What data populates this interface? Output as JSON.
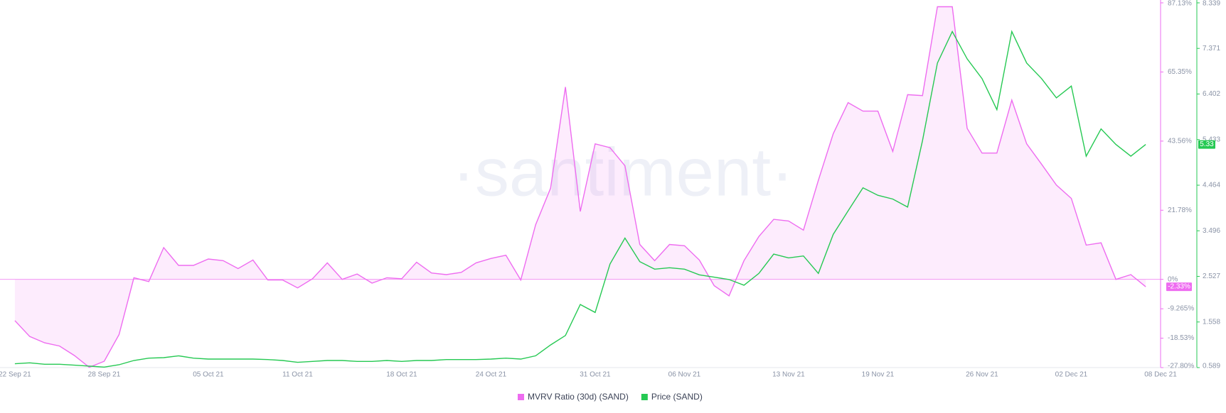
{
  "chart_data": {
    "type": "line",
    "watermark": "·santiment·",
    "x": [
      "22 Sep 21",
      "23 Sep 21",
      "24 Sep 21",
      "25 Sep 21",
      "26 Sep 21",
      "27 Sep 21",
      "28 Sep 21",
      "29 Sep 21",
      "30 Sep 21",
      "01 Oct 21",
      "02 Oct 21",
      "03 Oct 21",
      "04 Oct 21",
      "05 Oct 21",
      "06 Oct 21",
      "07 Oct 21",
      "08 Oct 21",
      "09 Oct 21",
      "10 Oct 21",
      "11 Oct 21",
      "12 Oct 21",
      "13 Oct 21",
      "14 Oct 21",
      "15 Oct 21",
      "16 Oct 21",
      "17 Oct 21",
      "18 Oct 21",
      "19 Oct 21",
      "20 Oct 21",
      "21 Oct 21",
      "22 Oct 21",
      "23 Oct 21",
      "24 Oct 21",
      "25 Oct 21",
      "26 Oct 21",
      "27 Oct 21",
      "28 Oct 21",
      "29 Oct 21",
      "30 Oct 21",
      "31 Oct 21",
      "01 Nov 21",
      "02 Nov 21",
      "03 Nov 21",
      "04 Nov 21",
      "05 Nov 21",
      "06 Nov 21",
      "07 Nov 21",
      "08 Nov 21",
      "09 Nov 21",
      "10 Nov 21",
      "11 Nov 21",
      "12 Nov 21",
      "13 Nov 21",
      "14 Nov 21",
      "15 Nov 21",
      "16 Nov 21",
      "17 Nov 21",
      "18 Nov 21",
      "19 Nov 21",
      "20 Nov 21",
      "21 Nov 21",
      "22 Nov 21",
      "23 Nov 21",
      "24 Nov 21",
      "25 Nov 21",
      "26 Nov 21",
      "27 Nov 21",
      "28 Nov 21",
      "29 Nov 21",
      "30 Nov 21",
      "01 Dec 21",
      "02 Dec 21",
      "03 Dec 21",
      "04 Dec 21",
      "05 Dec 21",
      "06 Dec 21",
      "07 Dec 21"
    ],
    "xlim": [
      "21 Sep 21",
      "08 Dec 21"
    ],
    "xticks": [
      "22 Sep 21",
      "28 Sep 21",
      "05 Oct 21",
      "11 Oct 21",
      "18 Oct 21",
      "24 Oct 21",
      "31 Oct 21",
      "06 Nov 21",
      "13 Nov 21",
      "19 Nov 21",
      "26 Nov 21",
      "02 Dec 21",
      "08 Dec 21"
    ],
    "ylim": [
      -27.8,
      87.13
    ],
    "yticks": [
      {
        "value": 87.13,
        "label": "87.13%"
      },
      {
        "value": 65.35,
        "label": "65.35%"
      },
      {
        "value": 43.56,
        "label": "43.56%"
      },
      {
        "value": 21.78,
        "label": "21.78%"
      },
      {
        "value": 0,
        "label": "0%"
      },
      {
        "value": -9.265,
        "label": "-9.265%"
      },
      {
        "value": -18.53,
        "label": "-18.53%"
      },
      {
        "value": -27.8,
        "label": "-27.80%"
      }
    ],
    "y2lim": [
      0.589,
      8.339
    ],
    "y2ticks": [
      8.339,
      7.371,
      6.402,
      5.433,
      4.464,
      3.496,
      2.527,
      1.558,
      0.589
    ],
    "series": [
      {
        "name": "MVRV Ratio (30d) (SAND)",
        "color": "#ee6cf0",
        "area": true,
        "current_label": "-2.33%",
        "values": [
          -13,
          -18,
          -20,
          -21,
          -24,
          -27.7,
          -25.8,
          -17.4,
          0.5,
          -0.7,
          10,
          4.4,
          4.4,
          6.4,
          5.9,
          3.4,
          6.1,
          -0.2,
          -0.2,
          -2.7,
          0.2,
          5.2,
          0,
          1.7,
          -1.2,
          0.5,
          0.2,
          5.4,
          2,
          1.5,
          2.2,
          5.2,
          6.6,
          7.6,
          -0.2,
          17.2,
          28.7,
          60.6,
          21.4,
          42.7,
          41.5,
          35.8,
          11,
          5.9,
          11,
          10.6,
          6.1,
          -2,
          -5.2,
          5.9,
          13.5,
          18.9,
          18.4,
          15.5,
          31.2,
          45.9,
          55.7,
          53,
          53,
          40.3,
          58.2,
          57.9,
          85.9,
          85.9,
          47.6,
          39.8,
          39.8,
          56.5,
          42.7,
          36.3,
          29.7,
          25.5,
          10.8,
          11.5,
          0,
          1.5,
          -2.33
        ]
      },
      {
        "name": "Price (SAND)",
        "color": "#26c953",
        "axis": "y2",
        "current_label": "5.33",
        "values": [
          0.67,
          0.69,
          0.66,
          0.66,
          0.64,
          0.62,
          0.6,
          0.65,
          0.74,
          0.79,
          0.8,
          0.84,
          0.79,
          0.77,
          0.77,
          0.77,
          0.77,
          0.76,
          0.74,
          0.7,
          0.72,
          0.74,
          0.74,
          0.72,
          0.72,
          0.74,
          0.72,
          0.74,
          0.74,
          0.76,
          0.76,
          0.76,
          0.77,
          0.79,
          0.77,
          0.84,
          1.07,
          1.27,
          1.93,
          1.76,
          2.79,
          3.34,
          2.84,
          2.68,
          2.71,
          2.68,
          2.56,
          2.51,
          2.46,
          2.34,
          2.59,
          3.0,
          2.92,
          2.96,
          2.59,
          3.42,
          3.92,
          4.41,
          4.25,
          4.17,
          4.0,
          5.41,
          7.06,
          7.73,
          7.15,
          6.73,
          6.07,
          7.73,
          7.06,
          6.73,
          6.32,
          6.57,
          5.08,
          5.66,
          5.33,
          5.08,
          5.33
        ]
      }
    ],
    "legend": "bottom"
  }
}
